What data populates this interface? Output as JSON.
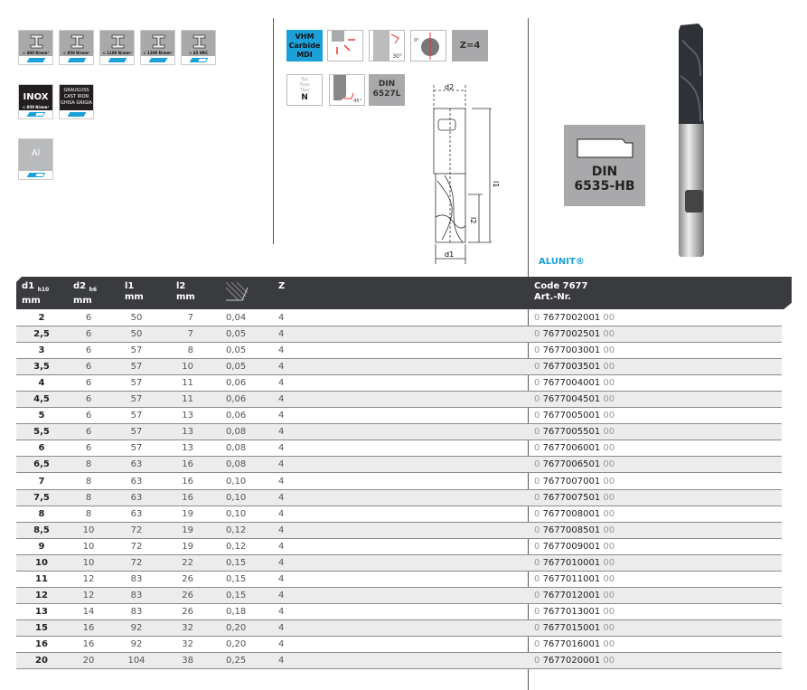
{
  "materials": {
    "steel": [
      {
        "label": "< 400 N/mm²",
        "fill": 1
      },
      {
        "label": "< 850 N/mm²",
        "fill": 1
      },
      {
        "label": "< 1100 N/mm²",
        "fill": 1
      },
      {
        "label": "< 1300 N/mm²",
        "fill": 1
      },
      {
        "label": "> 45 HRC",
        "fill": 0.5
      }
    ],
    "inox": {
      "title": "INOX",
      "label": "< 850 N/mm²",
      "fill": 0.5
    },
    "cast_iron": {
      "lines": [
        "GRAUGUSS",
        "CAST IRON",
        "GHISA GRIGIA"
      ],
      "fill": 1
    },
    "aluminium": {
      "title": "Al",
      "fill": 0.5
    }
  },
  "properties": {
    "material_badge": [
      "VHM",
      "Carbide",
      "MDI"
    ],
    "teeth": "Z=4",
    "helix_angle": "30°",
    "rake_angle": "0°",
    "type_labels": [
      "Typ",
      "Type",
      "Tipo"
    ],
    "type_value": "N",
    "chamfer_angle": "45°",
    "din_main": [
      "DIN",
      "6527L"
    ],
    "din_shank": [
      "DIN",
      "6535-HB"
    ]
  },
  "drawing": {
    "d2": "d2",
    "l1": "l1",
    "l2": "l2",
    "d1": "d1"
  },
  "brand": "ALUNIT®",
  "accent_color": "#1ba0d8",
  "table": {
    "headers": {
      "d1": "d1",
      "d1_tol": "h10",
      "d2": "d2",
      "d2_tol": "h6",
      "l1": "l1",
      "l2": "l2",
      "unit": "mm",
      "z": "Z",
      "code": "Code 7677",
      "artnr": "Art.-Nr."
    },
    "rows": [
      [
        "2",
        "6",
        "50",
        "7",
        "0,04",
        "4",
        "0",
        "7677002001",
        "00"
      ],
      [
        "2,5",
        "6",
        "50",
        "7",
        "0,05",
        "4",
        "0",
        "7677002501",
        "00"
      ],
      [
        "3",
        "6",
        "57",
        "8",
        "0,05",
        "4",
        "0",
        "7677003001",
        "00"
      ],
      [
        "3,5",
        "6",
        "57",
        "10",
        "0,05",
        "4",
        "0",
        "7677003501",
        "00"
      ],
      [
        "4",
        "6",
        "57",
        "11",
        "0,06",
        "4",
        "0",
        "7677004001",
        "00"
      ],
      [
        "4,5",
        "6",
        "57",
        "11",
        "0,06",
        "4",
        "0",
        "7677004501",
        "00"
      ],
      [
        "5",
        "6",
        "57",
        "13",
        "0,06",
        "4",
        "0",
        "7677005001",
        "00"
      ],
      [
        "5,5",
        "6",
        "57",
        "13",
        "0,08",
        "4",
        "0",
        "7677005501",
        "00"
      ],
      [
        "6",
        "6",
        "57",
        "13",
        "0,08",
        "4",
        "0",
        "7677006001",
        "00"
      ],
      [
        "6,5",
        "8",
        "63",
        "16",
        "0,08",
        "4",
        "0",
        "7677006501",
        "00"
      ],
      [
        "7",
        "8",
        "63",
        "16",
        "0,10",
        "4",
        "0",
        "7677007001",
        "00"
      ],
      [
        "7,5",
        "8",
        "63",
        "16",
        "0,10",
        "4",
        "0",
        "7677007501",
        "00"
      ],
      [
        "8",
        "8",
        "63",
        "19",
        "0,10",
        "4",
        "0",
        "7677008001",
        "00"
      ],
      [
        "8,5",
        "10",
        "72",
        "19",
        "0,12",
        "4",
        "0",
        "7677008501",
        "00"
      ],
      [
        "9",
        "10",
        "72",
        "19",
        "0,12",
        "4",
        "0",
        "7677009001",
        "00"
      ],
      [
        "10",
        "10",
        "72",
        "22",
        "0,15",
        "4",
        "0",
        "7677010001",
        "00"
      ],
      [
        "11",
        "12",
        "83",
        "26",
        "0,15",
        "4",
        "0",
        "7677011001",
        "00"
      ],
      [
        "12",
        "12",
        "83",
        "26",
        "0,15",
        "4",
        "0",
        "7677012001",
        "00"
      ],
      [
        "13",
        "14",
        "83",
        "26",
        "0,18",
        "4",
        "0",
        "7677013001",
        "00"
      ],
      [
        "15",
        "16",
        "92",
        "32",
        "0,20",
        "4",
        "0",
        "7677015001",
        "00"
      ],
      [
        "16",
        "16",
        "92",
        "32",
        "0,20",
        "4",
        "0",
        "7677016001",
        "00"
      ],
      [
        "20",
        "20",
        "104",
        "38",
        "0,25",
        "4",
        "0",
        "7677020001",
        "00"
      ]
    ]
  }
}
